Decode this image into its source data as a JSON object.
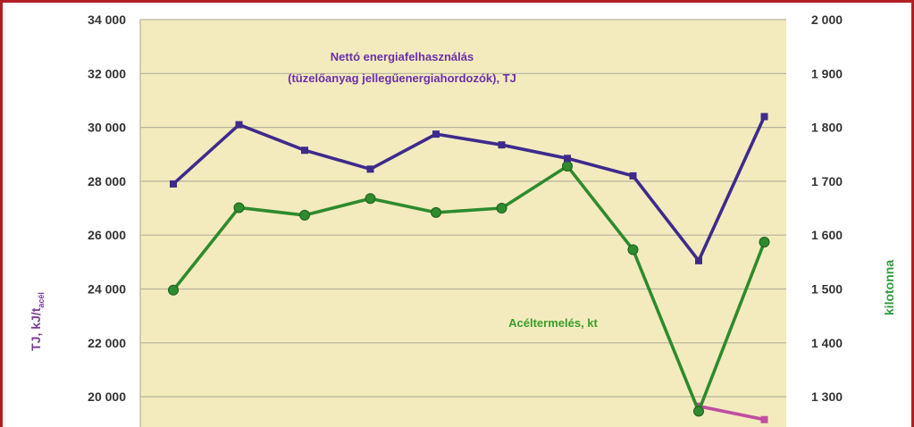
{
  "chart_data": {
    "type": "line",
    "y_left_ticks": [
      "34 000",
      "32 000",
      "30 000",
      "28 000",
      "26 000",
      "24 000",
      "22 000",
      "20 000"
    ],
    "y_right_ticks": [
      "2 000",
      "1 900",
      "1 800",
      "1 700",
      "1 600",
      "1 500",
      "1 400",
      "1 300"
    ],
    "ylabel_left": "TJ, kJ/t",
    "ylabel_left_sub": "acél",
    "ylabel_right": "kilotonna",
    "ylim_left": [
      19000,
      34000
    ],
    "ylim_right": [
      1250,
      2000
    ],
    "grid": true,
    "series": [
      {
        "name": "Nettó energiafelhasználás (tüzelőanyag jellegűenergiahordozók), TJ",
        "label_line1": "Nettó energiafelhasználás",
        "label_line2": "(tüzelőanyag jellegűenergiahordozók), TJ",
        "axis": "left",
        "color": "#3f2a8c",
        "values": [
          27900,
          30100,
          29150,
          28450,
          29750,
          29350,
          28850,
          28200,
          25050,
          30400
        ]
      },
      {
        "name": "Acéltermelés, kt",
        "label_line1": "Acéltermelés, kt",
        "axis": "right",
        "color": "#2e8b2e",
        "values": [
          1498,
          1651,
          1637,
          1668,
          1642,
          1650,
          1728,
          1573,
          1273,
          1587
        ]
      },
      {
        "name": "kJ/t acél",
        "axis": "left",
        "color": "#c04fa0",
        "values": [
          null,
          null,
          null,
          null,
          null,
          null,
          null,
          null,
          19650,
          19150
        ]
      }
    ]
  }
}
